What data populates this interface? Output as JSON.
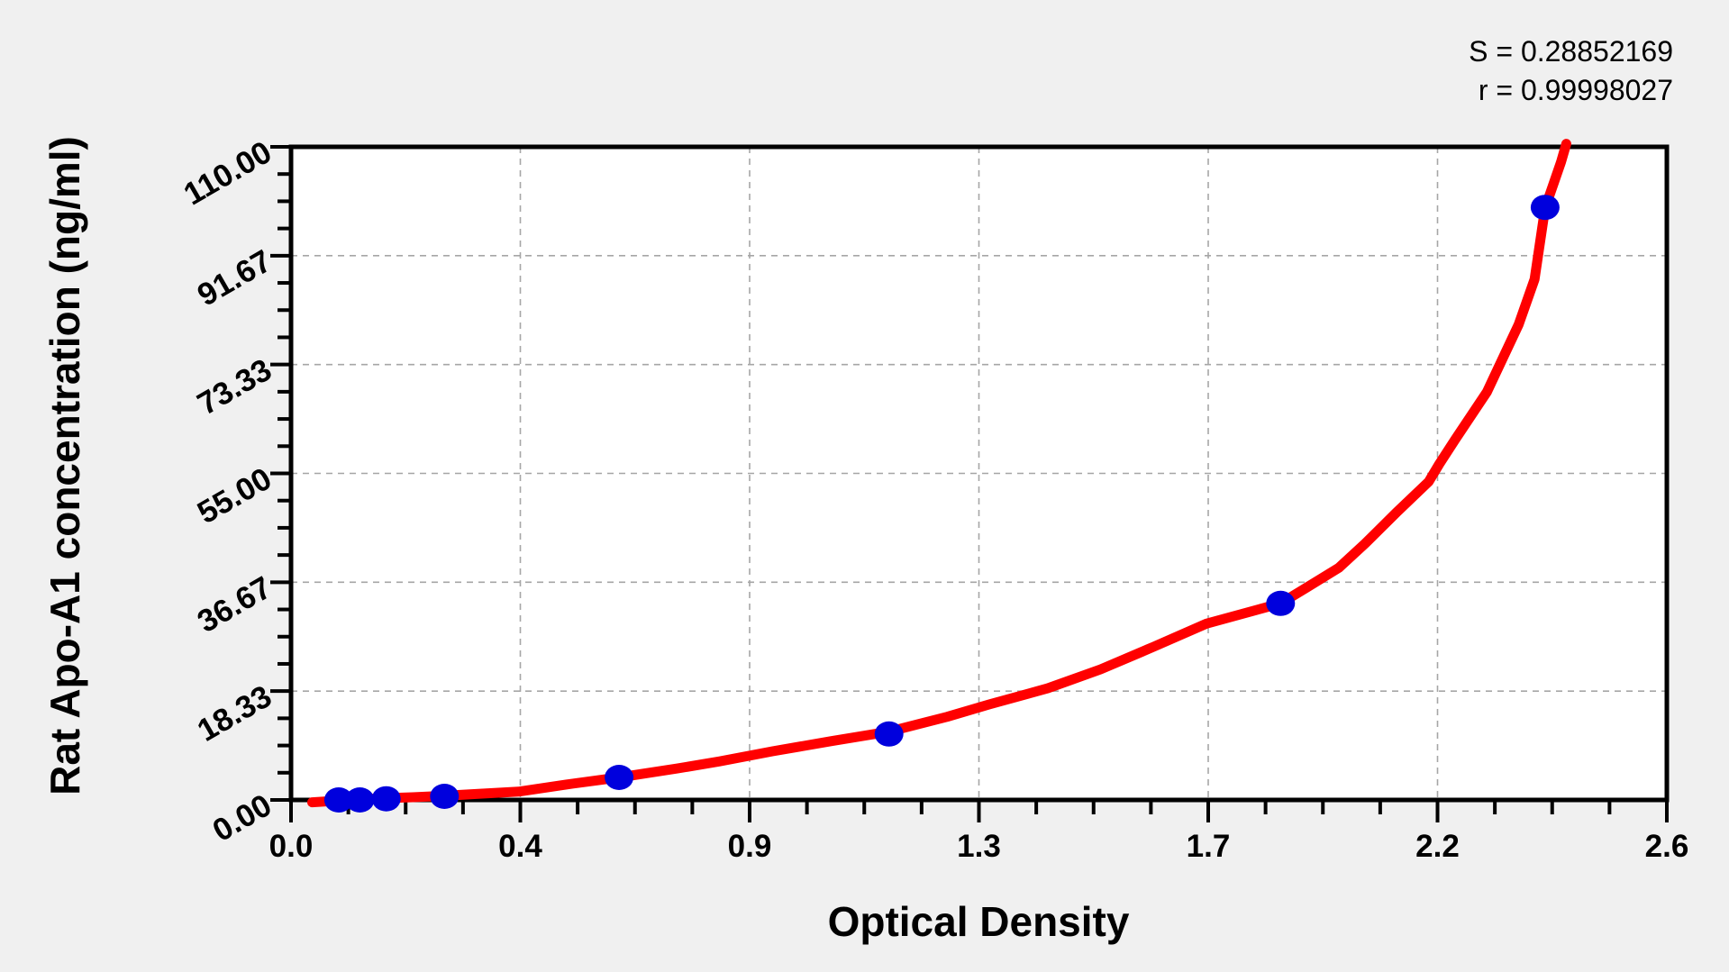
{
  "page": {
    "background": "#f0f0f0"
  },
  "stats": {
    "s_line": "S = 0.28852169",
    "r_line": "r = 0.99998027"
  },
  "chart_data": {
    "type": "scatter",
    "title": "",
    "xlabel": "Optical Density",
    "ylabel": "Rat Apo-A1 concentration (ng/ml)",
    "annotations": [
      "S = 0.28852169",
      "r = 0.99998027"
    ],
    "legend": "none",
    "grid": "major gridlines, dashed, both axes",
    "x_axis": {
      "min": 0,
      "max": 2.6,
      "major_divisions": 6,
      "minor_per_major": 4,
      "tick_labels": [
        "0.0",
        "0.4",
        "0.9",
        "1.3",
        "1.7",
        "2.2",
        "2.6"
      ]
    },
    "y_axis": {
      "min": 0,
      "max": 110,
      "major_divisions": 6,
      "minor_per_major": 4,
      "tick_labels": [
        "0.00",
        "18.33",
        "36.67",
        "55.00",
        "73.33",
        "91.67",
        "110.00"
      ]
    },
    "series": [
      {
        "name": "standard-points",
        "type": "scatter",
        "color": "#0000dd",
        "points": [
          [
            0.09,
            0.0
          ],
          [
            0.13,
            0.0
          ],
          [
            0.18,
            0.2
          ],
          [
            0.29,
            0.6
          ],
          [
            0.62,
            3.8
          ],
          [
            1.13,
            11.1
          ],
          [
            1.87,
            33.1
          ],
          [
            2.37,
            99.8
          ]
        ]
      },
      {
        "name": "fit-curve",
        "type": "line",
        "color": "#ff0000",
        "points": [
          [
            0.04,
            -0.4
          ],
          [
            0.09,
            -0.1
          ],
          [
            0.13,
            0.1
          ],
          [
            0.18,
            0.3
          ],
          [
            0.23,
            0.45
          ],
          [
            0.29,
            0.7
          ],
          [
            0.35,
            1.0
          ],
          [
            0.43,
            1.4
          ],
          [
            0.52,
            2.6
          ],
          [
            0.62,
            3.8
          ],
          [
            0.73,
            5.3
          ],
          [
            0.81,
            6.5
          ],
          [
            0.91,
            8.2
          ],
          [
            1.02,
            9.9
          ],
          [
            1.13,
            11.5
          ],
          [
            1.24,
            14.0
          ],
          [
            1.32,
            16.1
          ],
          [
            1.43,
            18.8
          ],
          [
            1.53,
            22.0
          ],
          [
            1.63,
            25.8
          ],
          [
            1.73,
            29.7
          ],
          [
            1.87,
            33.1
          ],
          [
            1.92,
            35.8
          ],
          [
            1.98,
            39.1
          ],
          [
            2.03,
            43.2
          ],
          [
            2.09,
            48.5
          ],
          [
            2.15,
            53.6
          ],
          [
            2.17,
            56.6
          ],
          [
            2.2,
            60.7
          ],
          [
            2.26,
            68.7
          ],
          [
            2.32,
            80.1
          ],
          [
            2.35,
            87.7
          ],
          [
            2.37,
            99.7
          ],
          [
            2.4,
            107.4
          ],
          [
            2.41,
            110.5
          ]
        ]
      }
    ]
  },
  "colors": {
    "page_bg": "#f0f0f0",
    "plot_bg": "#ffffff",
    "frame": "#000000",
    "grid": "#a6a6a6",
    "point": "#0000dd",
    "curve": "#ff0000",
    "text": "#000000"
  }
}
